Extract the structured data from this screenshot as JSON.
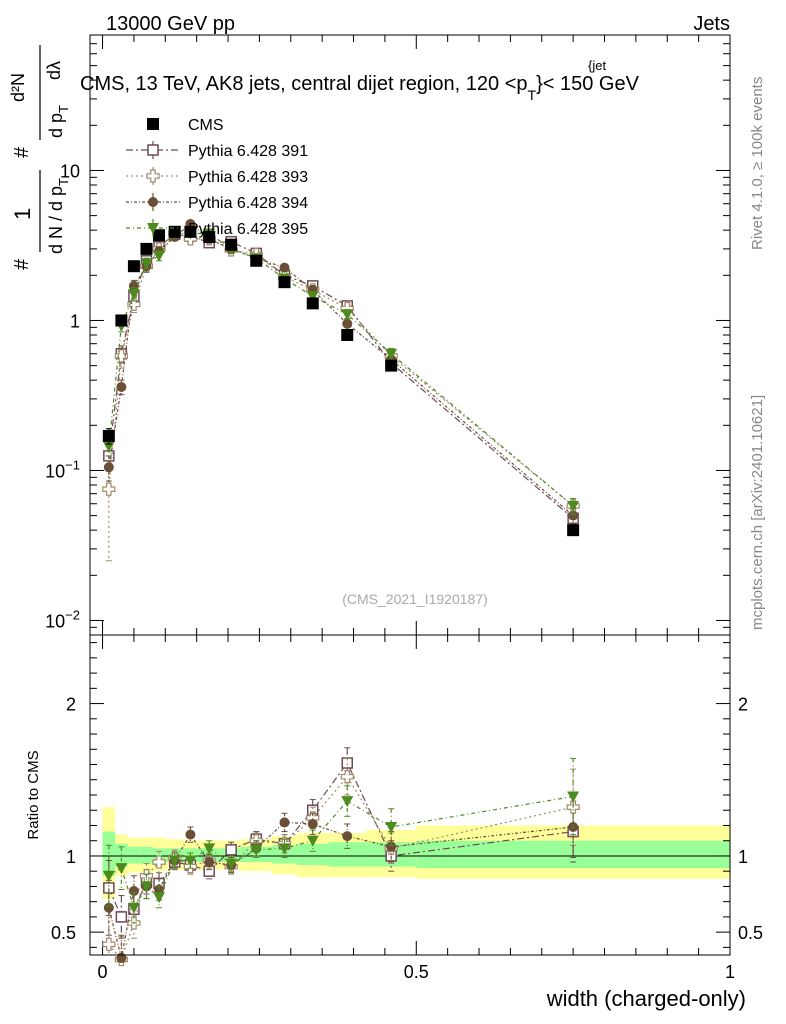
{
  "header": {
    "left": "13000 GeV pp",
    "right": "Jets",
    "title": "CMS, 13 TeV, AK8 jets, central dijet region, 120 <p",
    "title_sub": "T",
    "title_sup": "{jet",
    "title_tail": "}< 150 GeV"
  },
  "side_labels": {
    "rivet": "Rivet 4.1.0, ≥ 100k events",
    "mcplots": "mcplots.cern.ch [arXiv:2401.10621]"
  },
  "watermark": "(CMS_2021_I1920187)",
  "ylabel_main": {
    "hash1": "#",
    "one": "1",
    "dN": "d N / d p",
    "T1": "T",
    "hash2": "#",
    "d2N": "d²N",
    "dpT": "d p",
    "T2": "T",
    "dl": "dλ"
  },
  "chart_data": [
    {
      "type": "scatter",
      "panel": "main",
      "yscale": "log",
      "xlim": [
        -0.02,
        1.0
      ],
      "ylim": [
        0.008,
        80
      ],
      "xlabel": "width (charged-only)",
      "ytick_labels": [
        {
          "v": 0.01,
          "base": "10",
          "exp": "−2"
        },
        {
          "v": 0.1,
          "base": "10",
          "exp": "−1"
        },
        {
          "v": 1,
          "base": "1",
          "exp": ""
        },
        {
          "v": 10,
          "base": "10",
          "exp": ""
        }
      ],
      "legend": [
        "CMS",
        "Pythia 6.428 391",
        "Pythia 6.428 393",
        "Pythia 6.428 394",
        "Pythia 6.428 395"
      ],
      "x": [
        0.01,
        0.03,
        0.05,
        0.07,
        0.09,
        0.115,
        0.14,
        0.17,
        0.205,
        0.245,
        0.29,
        0.335,
        0.39,
        0.46,
        0.75
      ],
      "series": [
        {
          "name": "CMS",
          "marker": "square-filled",
          "color": "#000000",
          "dash": "",
          "values": [
            0.17,
            1.0,
            2.3,
            3.0,
            3.7,
            3.9,
            3.9,
            3.6,
            3.2,
            2.5,
            1.8,
            1.3,
            0.8,
            0.5,
            0.04
          ],
          "err": [
            0.02,
            0.06,
            0.1,
            0.1,
            0.1,
            0.1,
            0.1,
            0.1,
            0.1,
            0.08,
            0.06,
            0.05,
            0.03,
            0.02,
            0.003
          ]
        },
        {
          "name": "Pythia 6.428 391",
          "marker": "square-open",
          "color": "#6e4a59",
          "dash": "7,3,2,3",
          "values": [
            0.125,
            0.6,
            1.45,
            2.5,
            3.1,
            3.75,
            3.65,
            3.3,
            3.35,
            2.8,
            2.0,
            1.7,
            1.25,
            0.52,
            0.048
          ],
          "err": [
            0.02,
            0.08,
            0.15,
            0.2,
            0.2,
            0.2,
            0.2,
            0.2,
            0.2,
            0.15,
            0.12,
            0.1,
            0.08,
            0.05,
            0.006
          ]
        },
        {
          "name": "Pythia 6.428 393",
          "marker": "cross-open",
          "color": "#a08a6a",
          "dash": "2,3",
          "values": [
            0.075,
            0.58,
            1.28,
            2.3,
            3.0,
            3.8,
            3.5,
            3.5,
            2.95,
            2.75,
            1.95,
            1.6,
            1.2,
            0.58,
            0.058
          ],
          "err": [
            0.05,
            0.1,
            0.15,
            0.2,
            0.2,
            0.2,
            0.2,
            0.2,
            0.2,
            0.15,
            0.12,
            0.1,
            0.08,
            0.05,
            0.007
          ]
        },
        {
          "name": "Pythia 6.428 394",
          "marker": "circle-filled",
          "color": "#6b4e36",
          "dash": "3,2,1,2",
          "values": [
            0.105,
            0.36,
            1.7,
            2.3,
            2.9,
            3.6,
            4.4,
            3.5,
            3.0,
            2.6,
            2.25,
            1.6,
            0.95,
            0.55,
            0.05
          ],
          "err": [
            0.02,
            0.04,
            0.15,
            0.2,
            0.2,
            0.2,
            0.2,
            0.2,
            0.2,
            0.15,
            0.12,
            0.1,
            0.08,
            0.05,
            0.006
          ]
        },
        {
          "name": "Pythia 6.428 395",
          "marker": "triangle-down-filled",
          "color": "#4d8b1e",
          "dash": "4,3,1,3",
          "values": [
            0.145,
            0.92,
            1.5,
            2.4,
            2.7,
            3.8,
            3.8,
            3.8,
            3.0,
            2.6,
            1.9,
            1.45,
            1.1,
            0.6,
            0.058
          ],
          "err": [
            0.02,
            0.08,
            0.15,
            0.2,
            0.2,
            0.2,
            0.2,
            0.2,
            0.2,
            0.15,
            0.12,
            0.1,
            0.08,
            0.05,
            0.007
          ]
        }
      ]
    },
    {
      "type": "scatter",
      "panel": "ratio",
      "ylabel": "Ratio to CMS",
      "xlim": [
        -0.02,
        1.0
      ],
      "ylim": [
        0.35,
        2.45
      ],
      "yticks": [
        0.5,
        1,
        2
      ],
      "ytick_labels": [
        "0.5",
        "1",
        "2"
      ],
      "xticks": [
        0,
        0.5,
        1
      ],
      "xtick_labels": [
        "0",
        "0.5",
        "1"
      ],
      "bins": [
        [
          0.0,
          0.02
        ],
        [
          0.02,
          0.04
        ],
        [
          0.04,
          0.06
        ],
        [
          0.06,
          0.08
        ],
        [
          0.08,
          0.1
        ],
        [
          0.1,
          0.13
        ],
        [
          0.13,
          0.15
        ],
        [
          0.15,
          0.19
        ],
        [
          0.19,
          0.22
        ],
        [
          0.22,
          0.27
        ],
        [
          0.27,
          0.31
        ],
        [
          0.31,
          0.36
        ],
        [
          0.36,
          0.42
        ],
        [
          0.42,
          0.5
        ],
        [
          0.5,
          1.0
        ]
      ],
      "band_stat": [
        [
          0.87,
          1.16
        ],
        [
          0.93,
          1.08
        ],
        [
          0.95,
          1.06
        ],
        [
          0.95,
          1.06
        ],
        [
          0.96,
          1.05
        ],
        [
          0.96,
          1.05
        ],
        [
          0.96,
          1.05
        ],
        [
          0.96,
          1.05
        ],
        [
          0.96,
          1.05
        ],
        [
          0.96,
          1.06
        ],
        [
          0.95,
          1.07
        ],
        [
          0.94,
          1.08
        ],
        [
          0.93,
          1.09
        ],
        [
          0.93,
          1.09
        ],
        [
          0.92,
          1.1
        ]
      ],
      "band_total": [
        [
          0.72,
          1.32
        ],
        [
          0.87,
          1.14
        ],
        [
          0.89,
          1.12
        ],
        [
          0.89,
          1.12
        ],
        [
          0.9,
          1.12
        ],
        [
          0.91,
          1.11
        ],
        [
          0.91,
          1.1
        ],
        [
          0.91,
          1.1
        ],
        [
          0.91,
          1.1
        ],
        [
          0.9,
          1.11
        ],
        [
          0.88,
          1.13
        ],
        [
          0.86,
          1.15
        ],
        [
          0.86,
          1.15
        ],
        [
          0.86,
          1.17
        ],
        [
          0.85,
          1.2
        ]
      ],
      "x": [
        0.01,
        0.03,
        0.05,
        0.07,
        0.09,
        0.115,
        0.14,
        0.17,
        0.205,
        0.245,
        0.29,
        0.335,
        0.39,
        0.46,
        0.75
      ],
      "series": [
        {
          "name": "Pythia 6.428 391",
          "marker": "square-open",
          "color": "#6e4a59",
          "dash": "7,3,2,3",
          "values": [
            0.79,
            0.6,
            0.65,
            0.83,
            0.82,
            0.96,
            0.94,
            0.9,
            1.04,
            1.11,
            1.08,
            1.3,
            1.61,
            1.0,
            1.16
          ],
          "err": [
            0.18,
            0.14,
            0.1,
            0.08,
            0.07,
            0.05,
            0.05,
            0.05,
            0.05,
            0.05,
            0.06,
            0.07,
            0.1,
            0.1,
            0.2
          ]
        },
        {
          "name": "Pythia 6.428 393",
          "marker": "cross-open",
          "color": "#a08a6a",
          "dash": "2,3",
          "values": [
            0.42,
            0.32,
            0.56,
            0.87,
            0.96,
            0.99,
            0.93,
            0.97,
            0.93,
            1.1,
            1.08,
            1.25,
            1.52,
            1.05,
            1.32
          ],
          "err": [
            0.25,
            0.15,
            0.1,
            0.08,
            0.07,
            0.05,
            0.05,
            0.05,
            0.05,
            0.05,
            0.06,
            0.07,
            0.12,
            0.1,
            0.25
          ]
        },
        {
          "name": "Pythia 6.428 394",
          "marker": "circle-filled",
          "color": "#6b4e36",
          "dash": "3,2,1,2",
          "values": [
            0.66,
            0.33,
            0.77,
            0.8,
            0.78,
            0.97,
            1.14,
            0.96,
            0.94,
            1.05,
            1.22,
            1.21,
            1.13,
            1.06,
            1.19
          ],
          "err": [
            0.18,
            0.15,
            0.1,
            0.08,
            0.07,
            0.05,
            0.05,
            0.05,
            0.05,
            0.05,
            0.06,
            0.07,
            0.08,
            0.1,
            0.2
          ]
        },
        {
          "name": "Pythia 6.428 395",
          "marker": "triangle-down-filled",
          "color": "#4d8b1e",
          "dash": "4,3,1,3",
          "values": [
            0.87,
            0.92,
            0.66,
            0.8,
            0.73,
            0.97,
            0.97,
            1.05,
            0.95,
            1.04,
            1.05,
            1.1,
            1.36,
            1.19,
            1.39
          ],
          "err": [
            0.2,
            0.14,
            0.1,
            0.08,
            0.07,
            0.05,
            0.05,
            0.05,
            0.05,
            0.05,
            0.06,
            0.07,
            0.1,
            0.12,
            0.25
          ]
        }
      ]
    }
  ]
}
